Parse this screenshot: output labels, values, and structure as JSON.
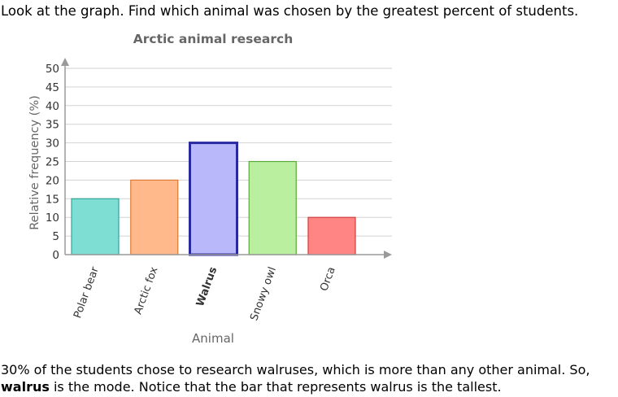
{
  "question": "Look at the graph. Find which animal was chosen by the greatest percent of students.",
  "chart_data": {
    "type": "bar",
    "title": "Arctic animal research",
    "xlabel": "Animal",
    "ylabel": "Relative frequency (%)",
    "categories": [
      "Polar bear",
      "Arctic fox",
      "Walrus",
      "Snowy owl",
      "Orca"
    ],
    "values": [
      15,
      20,
      30,
      25,
      10
    ],
    "ylim": [
      0,
      50
    ],
    "yticks": [
      "0",
      "5",
      "10",
      "15",
      "20",
      "25",
      "30",
      "35",
      "40",
      "45",
      "50"
    ],
    "grid": true,
    "legend": "none",
    "highlighted_category": "Walrus",
    "colors": {
      "fills": [
        "#7fded4",
        "#ffb98b",
        "#b8b8fb",
        "#baef9f",
        "#ff8585"
      ],
      "strokes": [
        "#31a495",
        "#e07a36",
        "#2a2aa0",
        "#5aa83a",
        "#d43b3b"
      ]
    }
  },
  "explanation": {
    "line1": "30% of the students chose to research walruses, which is more than any other animal. So,",
    "bold": "walrus",
    "line2": " is the mode. Notice that the bar that represents walrus is the tallest."
  }
}
